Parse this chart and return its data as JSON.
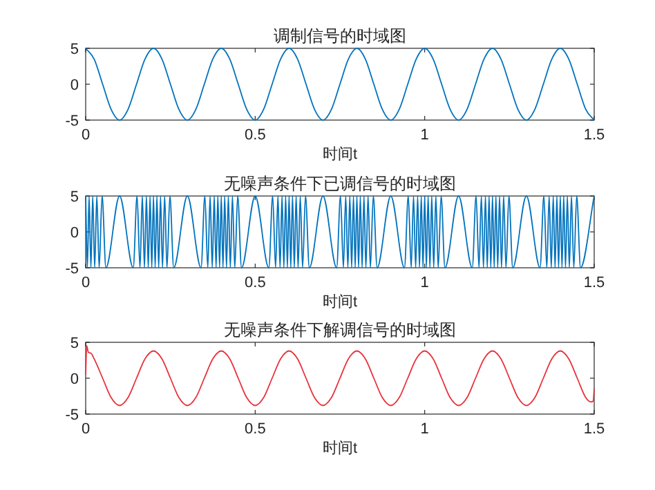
{
  "chart_data": [
    {
      "type": "line",
      "title": "调制信号的时域图",
      "xlabel": "时间t",
      "xlim": [
        0,
        1.5
      ],
      "xticks": [
        0,
        0.5,
        1,
        1.5
      ],
      "ylim": [
        -5,
        5
      ],
      "yticks": [
        -5,
        0,
        5
      ],
      "x": [
        0,
        0.025,
        0.05,
        0.075,
        0.1,
        0.125,
        0.15,
        0.175,
        0.2,
        0.225,
        0.25,
        0.275,
        0.3,
        0.325,
        0.35,
        0.375,
        0.4,
        0.425,
        0.45,
        0.475,
        0.5,
        0.525,
        0.55,
        0.575,
        0.6,
        0.625,
        0.65,
        0.675,
        0.7,
        0.725,
        0.75,
        0.775,
        0.8,
        0.825,
        0.85,
        0.875,
        0.9,
        0.925,
        0.95,
        0.975,
        1,
        1.025,
        1.05,
        1.075,
        1.1,
        1.125,
        1.15,
        1.175,
        1.2,
        1.225,
        1.25,
        1.275,
        1.3,
        1.325,
        1.35,
        1.375,
        1.4,
        1.425,
        1.45,
        1.475,
        1.5
      ],
      "series": [
        {
          "color": "#0072bd",
          "values": [
            5,
            3.5,
            0,
            -3.5,
            -5,
            -3.5,
            0,
            3.5,
            5,
            3.5,
            0,
            -3.5,
            -5,
            -3.5,
            0,
            3.5,
            5,
            3.5,
            0,
            -3.5,
            -5,
            -3.5,
            0,
            3.5,
            5,
            3.5,
            0,
            -3.5,
            -5,
            -3.5,
            0,
            3.5,
            5,
            3.5,
            0,
            -3.5,
            -5,
            -3.5,
            0,
            3.5,
            5,
            3.5,
            0,
            -3.5,
            -5,
            -3.5,
            0,
            3.5,
            5,
            3.5,
            0,
            -3.5,
            -5,
            -3.5,
            0,
            3.5,
            5,
            3.5,
            0,
            -3.5,
            -5
          ]
        }
      ]
    },
    {
      "type": "line",
      "title": "无噪声条件下已调信号的时域图",
      "xlabel": "时间t",
      "xlim": [
        0,
        1.5
      ],
      "xticks": [
        0,
        0.5,
        1,
        1.5
      ],
      "ylim": [
        -5,
        5
      ],
      "yticks": [
        -5,
        0,
        5
      ],
      "x": [
        0,
        0.005,
        0.0101,
        0.0154,
        0.0208,
        0.0266,
        0.0329,
        0.0398,
        0.0484,
        0.0597,
        0.1,
        0.1403,
        0.1516,
        0.1602,
        0.1671,
        0.1734,
        0.1792,
        0.1846,
        0.1899,
        0.195,
        0.2,
        0.205,
        0.2101,
        0.2154,
        0.2208,
        0.2266,
        0.2329,
        0.2398,
        0.2484,
        0.2597,
        0.3,
        0.3403,
        0.3516,
        0.3602,
        0.3671,
        0.3734,
        0.3792,
        0.3846,
        0.3899,
        0.395,
        0.4,
        0.405,
        0.4101,
        0.4154,
        0.4208,
        0.4266,
        0.4329,
        0.4398,
        0.4484,
        0.4597,
        0.5,
        0.5403,
        0.5516,
        0.5602,
        0.5671,
        0.5734,
        0.5792,
        0.5846,
        0.5899,
        0.595,
        0.6,
        0.605,
        0.6101,
        0.6154,
        0.6208,
        0.6266,
        0.6329,
        0.6398,
        0.6484,
        0.6597,
        0.7,
        0.7403,
        0.7516,
        0.7602,
        0.7671,
        0.7734,
        0.7792,
        0.7846,
        0.7899,
        0.795,
        0.8,
        0.805,
        0.8101,
        0.8154,
        0.8208,
        0.8266,
        0.8329,
        0.8398,
        0.8484,
        0.8597,
        0.9,
        0.9403,
        0.9516,
        0.9602,
        0.9671,
        0.9734,
        0.9792,
        0.9846,
        0.9899,
        0.995,
        1,
        1.005,
        1.0101,
        1.0154,
        1.0208,
        1.0266,
        1.0329,
        1.0398,
        1.0484,
        1.0597,
        1.1,
        1.1403,
        1.1516,
        1.1602,
        1.1671,
        1.1734,
        1.1792,
        1.1846,
        1.1899,
        1.195,
        1.2,
        1.205,
        1.2101,
        1.2154,
        1.2208,
        1.2266,
        1.2329,
        1.2398,
        1.2484,
        1.2597,
        1.3,
        1.3403,
        1.3516,
        1.3602,
        1.3671,
        1.3734,
        1.3792,
        1.3846,
        1.3899,
        1.395,
        1.4,
        1.405,
        1.4101,
        1.4154,
        1.4208,
        1.4266,
        1.4329,
        1.4398,
        1.4484,
        1.4597,
        1.5
      ],
      "series": [
        {
          "color": "#0072bd",
          "values": [
            5,
            -5,
            5,
            -5,
            5,
            -5,
            5,
            -5,
            5,
            -5,
            5,
            -5,
            5,
            -5,
            5,
            -5,
            5,
            -5,
            5,
            -5,
            5,
            -5,
            5,
            -5,
            5,
            -5,
            5,
            -5,
            5,
            -5,
            5,
            -5,
            5,
            -5,
            5,
            -5,
            5,
            -5,
            5,
            -5,
            5,
            -5,
            5,
            -5,
            5,
            -5,
            5,
            -5,
            5,
            -5,
            5,
            -5,
            5,
            -5,
            5,
            -5,
            5,
            -5,
            5,
            -5,
            5,
            -5,
            5,
            -5,
            5,
            -5,
            5,
            -5,
            5,
            -5,
            5,
            -5,
            5,
            -5,
            5,
            -5,
            5,
            -5,
            5,
            -5,
            5,
            -5,
            5,
            -5,
            5,
            -5,
            5,
            -5,
            5,
            -5,
            5,
            -5,
            5,
            -5,
            5,
            -5,
            5,
            -5,
            5,
            -5,
            5,
            -5,
            5,
            -5,
            5,
            -5,
            5,
            -5,
            5,
            -5,
            5,
            -5,
            5,
            -5,
            5,
            -5,
            5,
            -5,
            5,
            -5,
            5,
            -5,
            5,
            -5,
            5,
            -5,
            5,
            -5,
            5,
            -5,
            5,
            -5,
            5,
            -5,
            5,
            -5,
            5,
            -5,
            5,
            -5,
            5,
            -5,
            5,
            -5,
            5,
            -5,
            5,
            -5,
            5,
            -5,
            5
          ]
        }
      ]
    },
    {
      "type": "line",
      "title": "无噪声条件下解调信号的时域图",
      "xlabel": "时间t",
      "xlim": [
        0,
        1.5
      ],
      "xticks": [
        0,
        0.5,
        1,
        1.5
      ],
      "ylim": [
        -5,
        5
      ],
      "yticks": [
        -5,
        0,
        5
      ],
      "x": [
        0,
        0.003,
        0.008,
        0.015,
        0.025,
        0.05,
        0.075,
        0.1,
        0.125,
        0.15,
        0.175,
        0.2,
        0.225,
        0.25,
        0.275,
        0.3,
        0.325,
        0.35,
        0.375,
        0.4,
        0.425,
        0.45,
        0.475,
        0.5,
        0.525,
        0.55,
        0.575,
        0.6,
        0.625,
        0.65,
        0.675,
        0.7,
        0.725,
        0.75,
        0.775,
        0.8,
        0.825,
        0.85,
        0.875,
        0.9,
        0.925,
        0.95,
        0.975,
        1,
        1.025,
        1.05,
        1.075,
        1.1,
        1.125,
        1.15,
        1.175,
        1.2,
        1.225,
        1.25,
        1.275,
        1.3,
        1.325,
        1.35,
        1.375,
        1.4,
        1.425,
        1.45,
        1.475,
        1.49,
        1.497,
        1.5
      ],
      "series": [
        {
          "color": "#e8323c",
          "values": [
            0.5,
            4.5,
            3.6,
            3.5,
            2.7,
            0,
            -2.7,
            -3.8,
            -2.7,
            0,
            2.7,
            3.8,
            2.7,
            0,
            -2.7,
            -3.8,
            -2.7,
            0,
            2.7,
            3.8,
            2.7,
            0,
            -2.7,
            -3.8,
            -2.7,
            0,
            2.7,
            3.8,
            2.7,
            0,
            -2.7,
            -3.8,
            -2.7,
            0,
            2.7,
            3.8,
            2.7,
            0,
            -2.7,
            -3.8,
            -2.7,
            0,
            2.7,
            3.8,
            2.7,
            0,
            -2.7,
            -3.8,
            -2.7,
            0,
            2.7,
            3.8,
            2.7,
            0,
            -2.7,
            -3.8,
            -2.7,
            0,
            2.7,
            3.8,
            2.7,
            0,
            -2.7,
            -3.3,
            -3.2,
            -1.5
          ]
        }
      ]
    }
  ]
}
